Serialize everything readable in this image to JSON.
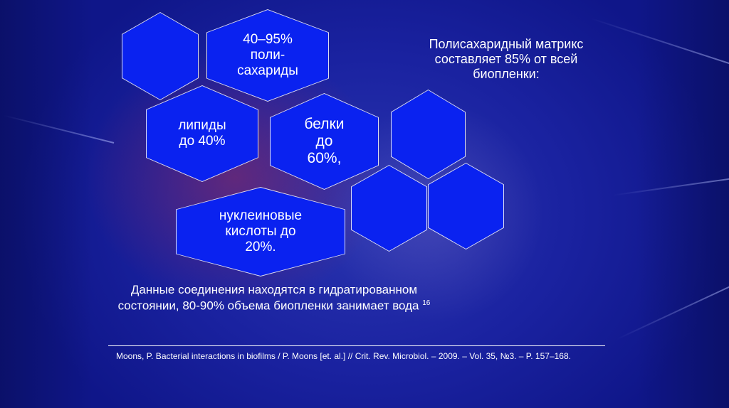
{
  "hexagons": {
    "polysaccharides": "40–95%\nполи-\nсахариды",
    "lipids": "липиды\nдо 40%",
    "proteins": "белки\nдо\n60%,",
    "nucleic_acids": "нуклеиновые\nкислоты до\n20%."
  },
  "right_text": "Полисахаридный матрикс\nсоставляет 85% от всей\nбиопленки:",
  "bottom_text": "Данные соединения находятся в гидратированном состоянии, 80-90% объема биопленки занимает вода",
  "bottom_superscript": "16",
  "reference": "Moons, P. Bacterial interactions in biofilms / P. Moons [et. al.] // Crit. Rev. Microbiol. – 2009. – Vol. 35, №3. – P. 157–168.",
  "colors": {
    "hexagon_fill": "#0a22f0",
    "background": "#141a8e",
    "text": "#ffffff"
  }
}
